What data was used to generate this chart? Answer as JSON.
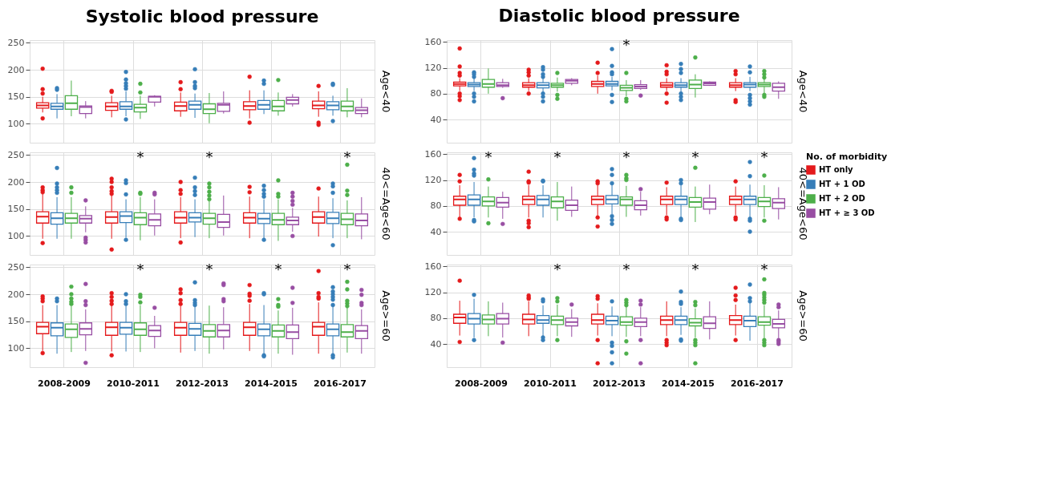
{
  "chart_data": [
    {
      "type": "box",
      "title": "Systolic blood pressure",
      "y2label": "Age<40",
      "categories": [
        null,
        null,
        null,
        null,
        null
      ],
      "tick_labels": "y",
      "ylim": [
        65,
        255
      ],
      "yticks": [
        100,
        150,
        200,
        250
      ],
      "grid": true,
      "series": [
        {
          "color": "#e41a1c",
          "boxes": [
            {
              "low": 121,
              "q1": 129,
              "median": 134,
              "q3": 139,
              "high": 150,
              "outliers": [
                202,
                164,
                156,
                110
              ]
            },
            {
              "low": 112,
              "q1": 125,
              "median": 132,
              "q3": 139,
              "high": 152,
              "outliers": [
                161,
                159
              ]
            },
            {
              "low": 113,
              "q1": 124,
              "median": 133,
              "q3": 140,
              "high": 158,
              "outliers": [
                177,
                164
              ]
            },
            {
              "low": 110,
              "q1": 126,
              "median": 133,
              "q3": 141,
              "high": 162,
              "outliers": [
                187,
                102
              ]
            },
            {
              "low": 113,
              "q1": 128,
              "median": 134,
              "q3": 142,
              "high": 160,
              "outliers": [
                170,
                102,
                98
              ]
            }
          ]
        },
        {
          "color": "#377eb8",
          "boxes": [
            {
              "low": 110,
              "q1": 127,
              "median": 132,
              "q3": 138,
              "high": 155,
              "outliers": [
                166,
                163
              ]
            },
            {
              "low": 114,
              "q1": 127,
              "median": 132,
              "q3": 141,
              "high": 160,
              "outliers": [
                196,
                182,
                175,
                170,
                165,
                108
              ]
            },
            {
              "low": 111,
              "q1": 127,
              "median": 135,
              "q3": 142,
              "high": 156,
              "outliers": [
                201,
                177,
                170,
                166
              ]
            },
            {
              "low": 118,
              "q1": 127,
              "median": 135,
              "q3": 143,
              "high": 162,
              "outliers": [
                180,
                174
              ]
            },
            {
              "low": 115,
              "q1": 126,
              "median": 134,
              "q3": 141,
              "high": 152,
              "outliers": [
                174,
                172,
                105
              ]
            }
          ]
        },
        {
          "color": "#4daf4a",
          "boxes": [
            {
              "low": 114,
              "q1": 127,
              "median": 138,
              "q3": 152,
              "high": 180
            },
            {
              "low": 109,
              "q1": 122,
              "median": 130,
              "q3": 136,
              "high": 152,
              "outliers": [
                174,
                158
              ]
            },
            {
              "low": 101,
              "q1": 119,
              "median": 127,
              "q3": 137,
              "high": 157
            },
            {
              "low": 115,
              "q1": 124,
              "median": 132,
              "q3": 143,
              "high": 158,
              "outliers": [
                181
              ]
            },
            {
              "low": 112,
              "q1": 124,
              "median": 132,
              "q3": 142,
              "high": 166
            }
          ]
        },
        {
          "color": "#984ea3",
          "boxes": [
            {
              "low": 110,
              "q1": 119,
              "median": 131,
              "q3": 133,
              "high": 142
            },
            {
              "low": 132,
              "q1": 140,
              "median": 150,
              "q3": 151,
              "high": 153
            },
            {
              "low": 119,
              "q1": 123,
              "median": 135,
              "q3": 138,
              "high": 160
            },
            {
              "low": 132,
              "q1": 137,
              "median": 144,
              "q3": 149,
              "high": 155
            },
            {
              "low": 112,
              "q1": 119,
              "median": 125,
              "q3": 130,
              "high": 147
            }
          ]
        }
      ]
    },
    {
      "type": "box",
      "title": "Diastolic blood pressure",
      "y2label": "Age<40",
      "categories": [
        null,
        null,
        null,
        null,
        null
      ],
      "tick_labels": "y",
      "ylim": [
        4,
        163
      ],
      "yticks": [
        40,
        80,
        120,
        160
      ],
      "grid": true,
      "annotations": [
        "*"
      ],
      "series": [
        {
          "color": "#e41a1c",
          "boxes": [
            {
              "low": 84,
              "q1": 92,
              "median": 95,
              "q3": 98,
              "high": 104,
              "outliers": [
                150,
                122,
                112,
                108,
                80,
                76,
                70
              ]
            },
            {
              "low": 84,
              "q1": 90,
              "median": 93,
              "q3": 97,
              "high": 104,
              "outliers": [
                117,
                113,
                108,
                80
              ]
            },
            {
              "low": 80,
              "q1": 91,
              "median": 95,
              "q3": 99,
              "high": 108,
              "outliers": [
                128,
                112
              ]
            },
            {
              "low": 84,
              "q1": 90,
              "median": 93,
              "q3": 97,
              "high": 104,
              "outliers": [
                124,
                114,
                110,
                80,
                66
              ]
            },
            {
              "low": 84,
              "q1": 90,
              "median": 93,
              "q3": 97,
              "high": 104,
              "outliers": [
                115,
                110,
                70,
                67
              ]
            }
          ]
        },
        {
          "color": "#377eb8",
          "boxes": [
            {
              "low": 84,
              "q1": 91,
              "median": 94,
              "q3": 97,
              "high": 104,
              "outliers": [
                113,
                110,
                106,
                80,
                75,
                68
              ]
            },
            {
              "low": 82,
              "q1": 89,
              "median": 93,
              "q3": 97,
              "high": 104,
              "outliers": [
                121,
                117,
                110,
                106,
                80,
                75,
                68
              ]
            },
            {
              "low": 85,
              "q1": 92,
              "median": 95,
              "q3": 99,
              "high": 106,
              "outliers": [
                149,
                123,
                113,
                110,
                78,
                67
              ]
            },
            {
              "low": 82,
              "q1": 90,
              "median": 93,
              "q3": 97,
              "high": 104,
              "outliers": [
                126,
                118,
                112,
                80,
                75,
                70
              ]
            },
            {
              "low": 84,
              "q1": 90,
              "median": 94,
              "q3": 97,
              "high": 106,
              "outliers": [
                122,
                113,
                78,
                73,
                68,
                63
              ]
            }
          ]
        },
        {
          "color": "#4daf4a",
          "boxes": [
            {
              "low": 80,
              "q1": 90,
              "median": 95,
              "q3": 102,
              "high": 119
            },
            {
              "low": 83,
              "q1": 90,
              "median": 93,
              "q3": 96,
              "high": 105,
              "outliers": [
                112,
                78,
                72
              ]
            },
            {
              "low": 76,
              "q1": 85,
              "median": 89,
              "q3": 93,
              "high": 101,
              "outliers": [
                112,
                72,
                68
              ]
            },
            {
              "low": 74,
              "q1": 88,
              "median": 94,
              "q3": 101,
              "high": 110,
              "outliers": [
                136
              ]
            },
            {
              "low": 80,
              "q1": 91,
              "median": 94,
              "q3": 97,
              "high": 104,
              "outliers": [
                115,
                110,
                105,
                78,
                75
              ]
            }
          ]
        },
        {
          "color": "#984ea3",
          "boxes": [
            {
              "low": 89,
              "q1": 91,
              "median": 93,
              "q3": 97,
              "high": 103,
              "outliers": [
                73
              ]
            },
            {
              "low": 93,
              "q1": 96,
              "median": 100,
              "q3": 102,
              "high": 104
            },
            {
              "low": 86,
              "q1": 88,
              "median": 91,
              "q3": 94,
              "high": 101,
              "outliers": [
                77
              ]
            },
            {
              "low": 92,
              "q1": 93,
              "median": 96,
              "q3": 98,
              "high": 99
            },
            {
              "low": 72,
              "q1": 84,
              "median": 90,
              "q3": 96,
              "high": 99
            }
          ]
        }
      ]
    },
    {
      "type": "box",
      "y2label": "40<=Age<60",
      "categories": [
        null,
        null,
        null,
        null,
        null
      ],
      "tick_labels": "y",
      "ylim": [
        65,
        255
      ],
      "yticks": [
        100,
        150,
        200,
        250
      ],
      "grid": true,
      "annotations": [
        "*",
        "*",
        "*"
      ],
      "series": [
        {
          "color": "#e41a1c",
          "boxes": [
            {
              "low": 95,
              "q1": 124,
              "median": 136,
              "q3": 145,
              "high": 178,
              "outliers": [
                190,
                185,
                181,
                87
              ]
            },
            {
              "low": 95,
              "q1": 124,
              "median": 135,
              "q3": 145,
              "high": 175,
              "outliers": [
                206,
                200,
                190,
                183,
                178,
                75
              ]
            },
            {
              "low": 96,
              "q1": 124,
              "median": 134,
              "q3": 145,
              "high": 172,
              "outliers": [
                200,
                185,
                178,
                88
              ]
            },
            {
              "low": 96,
              "q1": 124,
              "median": 134,
              "q3": 143,
              "high": 173,
              "outliers": [
                191,
                181
              ]
            },
            {
              "low": 99,
              "q1": 124,
              "median": 135,
              "q3": 145,
              "high": 173,
              "outliers": [
                188
              ]
            }
          ]
        },
        {
          "color": "#377eb8",
          "boxes": [
            {
              "low": 95,
              "q1": 122,
              "median": 133,
              "q3": 143,
              "high": 172,
              "outliers": [
                226,
                197,
                190,
                185,
                180
              ]
            },
            {
              "low": 97,
              "q1": 125,
              "median": 137,
              "q3": 145,
              "high": 168,
              "outliers": [
                203,
                198,
                177,
                93
              ]
            },
            {
              "low": 98,
              "q1": 126,
              "median": 134,
              "q3": 143,
              "high": 168,
              "outliers": [
                208,
                190,
                183,
                176
              ]
            },
            {
              "low": 96,
              "q1": 123,
              "median": 132,
              "q3": 142,
              "high": 168,
              "outliers": [
                193,
                185,
                178,
                173,
                93
              ]
            },
            {
              "low": 96,
              "q1": 123,
              "median": 133,
              "q3": 144,
              "high": 170,
              "outliers": [
                197,
                192,
                180,
                83
              ]
            }
          ]
        },
        {
          "color": "#4daf4a",
          "boxes": [
            {
              "low": 95,
              "q1": 124,
              "median": 133,
              "q3": 142,
              "high": 172,
              "outliers": [
                190,
                180
              ]
            },
            {
              "low": 92,
              "q1": 121,
              "median": 134,
              "q3": 143,
              "high": 172,
              "outliers": [
                180,
                178
              ]
            },
            {
              "low": 96,
              "q1": 122,
              "median": 133,
              "q3": 142,
              "high": 165,
              "outliers": [
                197,
                190,
                182,
                175,
                168
              ]
            },
            {
              "low": 91,
              "q1": 121,
              "median": 130,
              "q3": 142,
              "high": 168,
              "outliers": [
                203,
                178,
                173
              ]
            },
            {
              "low": 96,
              "q1": 121,
              "median": 131,
              "q3": 142,
              "high": 166,
              "outliers": [
                232,
                184,
                176
              ]
            }
          ]
        },
        {
          "color": "#984ea3",
          "boxes": [
            {
              "low": 107,
              "q1": 124,
              "median": 132,
              "q3": 138,
              "high": 155,
              "outliers": [
                166,
                97,
                93,
                88
              ]
            },
            {
              "low": 101,
              "q1": 119,
              "median": 130,
              "q3": 141,
              "high": 168,
              "outliers": [
                180,
                177
              ]
            },
            {
              "low": 101,
              "q1": 116,
              "median": 126,
              "q3": 140,
              "high": 175
            },
            {
              "low": 108,
              "q1": 121,
              "median": 129,
              "q3": 135,
              "high": 152,
              "outliers": [
                180,
                173,
                165,
                158,
                100
              ]
            },
            {
              "low": 94,
              "q1": 119,
              "median": 129,
              "q3": 141,
              "high": 172
            }
          ]
        }
      ]
    },
    {
      "type": "box",
      "y2label": "40<=Age<60",
      "categories": [
        null,
        null,
        null,
        null,
        null
      ],
      "tick_labels": "y",
      "ylim": [
        4,
        163
      ],
      "yticks": [
        40,
        80,
        120,
        160
      ],
      "grid": true,
      "legend": "right",
      "legend_title": "No. of morbidity",
      "annotations": [
        "*",
        "*",
        "*",
        "*",
        "*"
      ],
      "series": [
        {
          "name": "HT only",
          "color": "#e41a1c",
          "boxes": [
            {
              "low": 62,
              "q1": 81,
              "median": 90,
              "q3": 95,
              "high": 112,
              "outliers": [
                128,
                118,
                60
              ]
            },
            {
              "low": 62,
              "q1": 82,
              "median": 90,
              "q3": 95,
              "high": 112,
              "outliers": [
                133,
                118,
                116,
                57,
                53,
                47
              ]
            },
            {
              "low": 65,
              "q1": 82,
              "median": 90,
              "q3": 95,
              "high": 112,
              "outliers": [
                118,
                115,
                62,
                48
              ]
            },
            {
              "low": 66,
              "q1": 82,
              "median": 90,
              "q3": 95,
              "high": 109,
              "outliers": [
                116,
                62,
                59
              ]
            },
            {
              "low": 66,
              "q1": 82,
              "median": 90,
              "q3": 95,
              "high": 110,
              "outliers": [
                118,
                62,
                59
              ]
            }
          ]
        },
        {
          "name": "HT + 1 OD",
          "color": "#377eb8",
          "boxes": [
            {
              "low": 62,
              "q1": 81,
              "median": 90,
              "q3": 97,
              "high": 117,
              "outliers": [
                154,
                136,
                130,
                127,
                58,
                56
              ]
            },
            {
              "low": 62,
              "q1": 81,
              "median": 90,
              "q3": 96,
              "high": 112,
              "outliers": [
                119,
                118
              ]
            },
            {
              "low": 67,
              "q1": 83,
              "median": 90,
              "q3": 96,
              "high": 113,
              "outliers": [
                137,
                128,
                115,
                64,
                58,
                52
              ]
            },
            {
              "low": 62,
              "q1": 82,
              "median": 90,
              "q3": 95,
              "high": 112,
              "outliers": [
                120,
                115,
                60,
                58
              ]
            },
            {
              "low": 62,
              "q1": 82,
              "median": 90,
              "q3": 95,
              "high": 113,
              "outliers": [
                148,
                126,
                60,
                57,
                40
              ]
            }
          ]
        },
        {
          "name": "HT + 2 OD",
          "color": "#4daf4a",
          "boxes": [
            {
              "low": 62,
              "q1": 80,
              "median": 87,
              "q3": 94,
              "high": 110,
              "outliers": [
                121,
                53
              ]
            },
            {
              "low": 57,
              "q1": 77,
              "median": 87,
              "q3": 94,
              "high": 117
            },
            {
              "low": 63,
              "q1": 81,
              "median": 90,
              "q3": 94,
              "high": 111,
              "outliers": [
                128,
                123,
                120
              ]
            },
            {
              "low": 55,
              "q1": 78,
              "median": 86,
              "q3": 93,
              "high": 110,
              "outliers": [
                139
              ]
            },
            {
              "low": 62,
              "q1": 79,
              "median": 87,
              "q3": 93,
              "high": 112,
              "outliers": [
                127,
                57
              ]
            }
          ]
        },
        {
          "name": "HT + ≥ 3 OD",
          "color": "#984ea3",
          "boxes": [
            {
              "low": 60,
              "q1": 78,
              "median": 85,
              "q3": 93,
              "high": 102,
              "outliers": [
                52
              ]
            },
            {
              "low": 63,
              "q1": 73,
              "median": 81,
              "q3": 89,
              "high": 110
            },
            {
              "low": 65,
              "q1": 74,
              "median": 81,
              "q3": 88,
              "high": 102,
              "outliers": [
                106
              ]
            },
            {
              "low": 67,
              "q1": 75,
              "median": 86,
              "q3": 92,
              "high": 113
            },
            {
              "low": 59,
              "q1": 76,
              "median": 85,
              "q3": 91,
              "high": 109
            }
          ]
        }
      ]
    },
    {
      "type": "box",
      "y2label": "Age>=60",
      "categories": [
        "2008-2009",
        "2010-2011",
        "2012-2013",
        "2014-2015",
        "2016-2017"
      ],
      "ylim": [
        65,
        255
      ],
      "yticks": [
        100,
        150,
        200,
        250
      ],
      "grid": true,
      "annotations": [
        "*",
        "*",
        "*",
        "*"
      ],
      "series": [
        {
          "color": "#e41a1c",
          "boxes": [
            {
              "low": 95,
              "q1": 127,
              "median": 140,
              "q3": 148,
              "high": 180,
              "outliers": [
                196,
                192,
                187,
                91
              ]
            },
            {
              "low": 94,
              "q1": 124,
              "median": 139,
              "q3": 148,
              "high": 180,
              "outliers": [
                202,
                195,
                188,
                182,
                87
              ]
            },
            {
              "low": 92,
              "q1": 124,
              "median": 138,
              "q3": 148,
              "high": 178,
              "outliers": [
                209,
                202,
                189,
                182
              ]
            },
            {
              "low": 95,
              "q1": 124,
              "median": 139,
              "q3": 148,
              "high": 182,
              "outliers": [
                217,
                201,
                197,
                188
              ]
            },
            {
              "low": 90,
              "q1": 124,
              "median": 140,
              "q3": 148,
              "high": 185,
              "outliers": [
                243,
                202,
                195,
                192
              ]
            }
          ]
        },
        {
          "color": "#377eb8",
          "boxes": [
            {
              "low": 90,
              "q1": 123,
              "median": 138,
              "q3": 147,
              "high": 180,
              "outliers": [
                192,
                187
              ]
            },
            {
              "low": 94,
              "q1": 126,
              "median": 138,
              "q3": 148,
              "high": 178,
              "outliers": [
                200,
                187,
                182
              ]
            },
            {
              "low": 95,
              "q1": 124,
              "median": 136,
              "q3": 146,
              "high": 178,
              "outliers": [
                222,
                189,
                184,
                180
              ]
            },
            {
              "low": 90,
              "q1": 123,
              "median": 135,
              "q3": 145,
              "high": 180,
              "outliers": [
                202,
                200,
                87,
                85
              ]
            },
            {
              "low": 90,
              "q1": 123,
              "median": 135,
              "q3": 145,
              "high": 178,
              "outliers": [
                213,
                205,
                200,
                195,
                190,
                180,
                87,
                83
              ]
            }
          ]
        },
        {
          "color": "#4daf4a",
          "boxes": [
            {
              "low": 93,
              "q1": 120,
              "median": 135,
              "q3": 145,
              "high": 178,
              "outliers": [
                214,
                200,
                192,
                186,
                182
              ]
            },
            {
              "low": 93,
              "q1": 124,
              "median": 135,
              "q3": 147,
              "high": 180,
              "outliers": [
                199,
                195,
                185
              ]
            },
            {
              "low": 90,
              "q1": 121,
              "median": 132,
              "q3": 144,
              "high": 179
            },
            {
              "low": 90,
              "q1": 121,
              "median": 132,
              "q3": 143,
              "high": 170,
              "outliers": [
                191,
                180,
                177
              ]
            },
            {
              "low": 92,
              "q1": 121,
              "median": 130,
              "q3": 144,
              "high": 178,
              "outliers": [
                223,
                209,
                188,
                183,
                178
              ]
            }
          ]
        },
        {
          "color": "#984ea3",
          "boxes": [
            {
              "low": 95,
              "q1": 125,
              "median": 136,
              "q3": 147,
              "high": 172,
              "outliers": [
                219,
                187,
                180,
                73
              ]
            },
            {
              "low": 100,
              "q1": 122,
              "median": 133,
              "q3": 142,
              "high": 160,
              "outliers": [
                175
              ]
            },
            {
              "low": 98,
              "q1": 121,
              "median": 133,
              "q3": 144,
              "high": 176,
              "outliers": [
                220,
                217,
                191,
                187
              ]
            },
            {
              "low": 88,
              "q1": 118,
              "median": 130,
              "q3": 143,
              "high": 175,
              "outliers": [
                212,
                184
              ]
            },
            {
              "low": 90,
              "q1": 118,
              "median": 132,
              "q3": 142,
              "high": 172,
              "outliers": [
                208,
                199,
                184,
                180
              ]
            }
          ]
        }
      ]
    },
    {
      "type": "box",
      "y2label": "Age>=60",
      "categories": [
        "2008-2009",
        "2010-2011",
        "2012-2013",
        "2014-2015",
        "2016-2017"
      ],
      "ylim": [
        4,
        163
      ],
      "yticks": [
        40,
        80,
        120,
        160
      ],
      "grid": true,
      "annotations": [
        "*",
        "*",
        "*",
        "*"
      ],
      "series": [
        {
          "color": "#e41a1c",
          "boxes": [
            {
              "low": 53,
              "q1": 72,
              "median": 81,
              "q3": 86,
              "high": 107,
              "outliers": [
                138,
                43
              ]
            },
            {
              "low": 52,
              "q1": 71,
              "median": 78,
              "q3": 86,
              "high": 106,
              "outliers": [
                115,
                112,
                110
              ]
            },
            {
              "low": 53,
              "q1": 71,
              "median": 77,
              "q3": 86,
              "high": 103,
              "outliers": [
                114,
                110,
                46,
                10
              ]
            },
            {
              "low": 52,
              "q1": 70,
              "median": 77,
              "q3": 83,
              "high": 106,
              "outliers": [
                46,
                42,
                38
              ]
            },
            {
              "low": 53,
              "q1": 70,
              "median": 77,
              "q3": 84,
              "high": 101,
              "outliers": [
                127,
                115,
                108,
                46
              ]
            }
          ]
        },
        {
          "color": "#377eb8",
          "boxes": [
            {
              "low": 50,
              "q1": 71,
              "median": 79,
              "q3": 87,
              "high": 110,
              "outliers": [
                116,
                46
              ]
            },
            {
              "low": 52,
              "q1": 72,
              "median": 77,
              "q3": 84,
              "high": 100,
              "outliers": [
                109,
                106,
                50,
                46
              ]
            },
            {
              "low": 52,
              "q1": 70,
              "median": 76,
              "q3": 83,
              "high": 98,
              "outliers": [
                106,
                42,
                37,
                27,
                10
              ]
            },
            {
              "low": 54,
              "q1": 70,
              "median": 77,
              "q3": 83,
              "high": 97,
              "outliers": [
                121,
                105,
                102,
                47,
                45
              ]
            },
            {
              "low": 45,
              "q1": 67,
              "median": 76,
              "q3": 83,
              "high": 105,
              "outliers": [
                132,
                111,
                106
              ]
            }
          ]
        },
        {
          "color": "#4daf4a",
          "boxes": [
            {
              "low": 52,
              "q1": 71,
              "median": 78,
              "q3": 85,
              "high": 106
            },
            {
              "low": 52,
              "q1": 70,
              "median": 77,
              "q3": 83,
              "high": 101,
              "outliers": [
                111,
                106,
                46
              ]
            },
            {
              "low": 51,
              "q1": 69,
              "median": 74,
              "q3": 82,
              "high": 99,
              "outliers": [
                108,
                104,
                100,
                44,
                25
              ]
            },
            {
              "low": 50,
              "q1": 68,
              "median": 73,
              "q3": 79,
              "high": 95,
              "outliers": [
                105,
                100,
                46,
                42,
                38,
                10
              ]
            },
            {
              "low": 49,
              "q1": 69,
              "median": 74,
              "q3": 82,
              "high": 100,
              "outliers": [
                140,
                119,
                116,
                112,
                108,
                104,
                46,
                42,
                38
              ]
            }
          ]
        },
        {
          "color": "#984ea3",
          "boxes": [
            {
              "low": 50,
              "q1": 71,
              "median": 79,
              "q3": 87,
              "high": 104,
              "outliers": [
                42
              ]
            },
            {
              "low": 51,
              "q1": 68,
              "median": 74,
              "q3": 80,
              "high": 94,
              "outliers": [
                101
              ]
            },
            {
              "low": 52,
              "q1": 67,
              "median": 74,
              "q3": 80,
              "high": 97,
              "outliers": [
                107,
                101,
                46,
                10
              ]
            },
            {
              "low": 47,
              "q1": 64,
              "median": 72,
              "q3": 82,
              "high": 106
            },
            {
              "low": 49,
              "q1": 65,
              "median": 71,
              "q3": 78,
              "high": 92,
              "outliers": [
                101,
                97,
                46,
                43,
                40
              ]
            }
          ]
        }
      ]
    }
  ]
}
